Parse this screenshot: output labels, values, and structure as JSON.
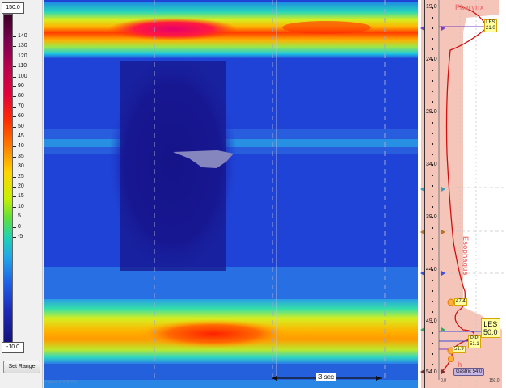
{
  "scale": {
    "max_box": "150.0",
    "min_box": "-10.0",
    "tick_labels": [
      "140",
      "130",
      "120",
      "110",
      "100",
      "90",
      "80",
      "70",
      "60",
      "50",
      "45",
      "40",
      "35",
      "30",
      "25",
      "20",
      "15",
      "10",
      "5",
      "0",
      "-5"
    ],
    "set_range_label": "Set Range"
  },
  "heatmap": {
    "watermark": "Patient 1 478.756",
    "time_label": "3 sec"
  },
  "profile": {
    "depth_labels": [
      "19.0",
      "24.0",
      "29.0",
      "34.0",
      "39.0",
      "44.0",
      "49.0",
      "54.0"
    ],
    "region_pharynx": "Pharynx",
    "region_esophagus": "Esophagus",
    "region_stomach": "h",
    "les_top": {
      "line1": "LES",
      "line2": "21.0"
    },
    "les_big": {
      "line1": "LES",
      "line2": "50.0"
    },
    "pip": {
      "line1": "PIP",
      "line2": "51.1"
    },
    "marker_474": "47.4",
    "marker_519": "51.9",
    "gastric": "Gastric 54.0",
    "axis_left": "0.0",
    "axis_right": "150.0"
  },
  "colors": {
    "pink_bg": "#f6c5b9",
    "profile_line": "#d01010",
    "heatmap_base": "#1f43d6"
  }
}
